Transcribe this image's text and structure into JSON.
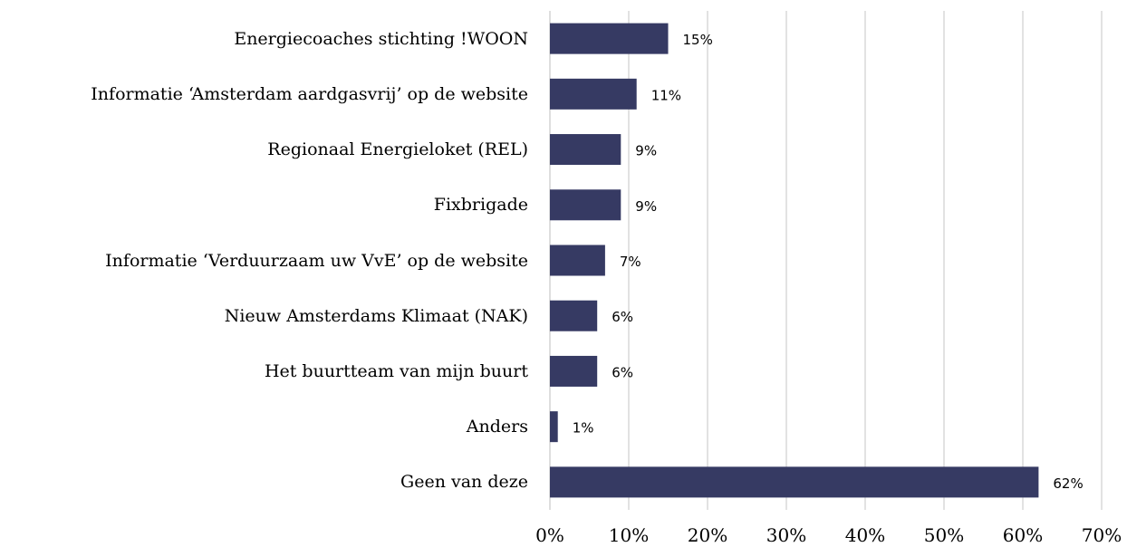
{
  "chart_data": {
    "type": "barh",
    "categories": [
      "Energiecoaches stichting !WOON",
      "Informatie ‘Amsterdam aardgasvrij’ op de website",
      "Regionaal Energieloket (REL)",
      "Fixbrigade",
      "Informatie ‘Verduurzaam uw VvE’ op de website",
      "Nieuw Amsterdams Klimaat (NAK)",
      "Het buurtteam van mijn buurt",
      "Anders",
      "Geen van deze"
    ],
    "values": [
      15,
      11,
      9,
      9,
      7,
      6,
      6,
      1,
      62
    ],
    "value_labels": [
      "15%",
      "11%",
      "9%",
      "9%",
      "7%",
      "6%",
      "6%",
      "1%",
      "62%"
    ],
    "color": "#363a63",
    "xlim": [
      0,
      70
    ],
    "xticks": [
      {
        "value": 0,
        "label": "0%"
      },
      {
        "value": 10,
        "label": "10%"
      },
      {
        "value": 20,
        "label": "20%"
      },
      {
        "value": 30,
        "label": "30%"
      },
      {
        "value": 40,
        "label": "40%"
      },
      {
        "value": 50,
        "label": "50%"
      },
      {
        "value": 60,
        "label": "60%"
      },
      {
        "value": 70,
        "label": "70%"
      }
    ],
    "grid": true
  }
}
